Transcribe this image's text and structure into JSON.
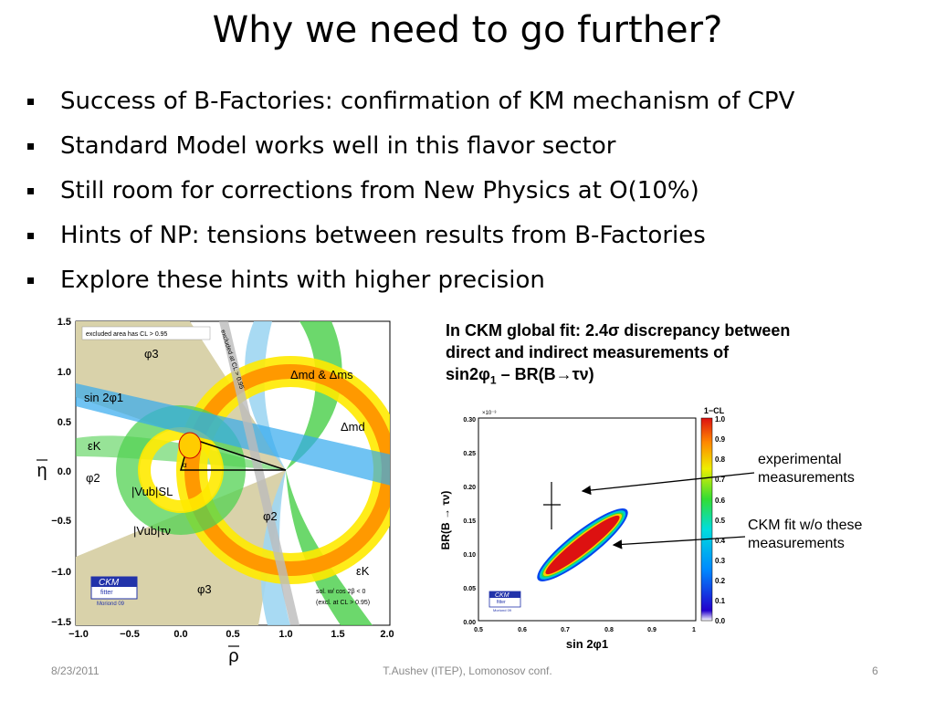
{
  "slide": {
    "title": "Why we need to go further?",
    "bullets": [
      "Success of B-Factories: confirmation of KM mechanism of CPV",
      "Standard Model works well in this flavor sector",
      "Still room for corrections from New Physics  at O(10%)",
      "Hints of NP: tensions between results from B-Factories",
      "Explore these hints with higher precision"
    ],
    "note": {
      "line1": "In CKM global fit: 2.4σ discrepancy between",
      "line2": "direct and indirect measurements of",
      "line3_a": "sin2φ",
      "line3_sub": "1",
      "line3_b": " – BR(B→τν)"
    },
    "callouts": {
      "experimental": [
        "experimental",
        "measurements"
      ],
      "ckm_fit": [
        "CKM fit w/o these",
        "measurements"
      ]
    },
    "footer": {
      "date": "8/23/2011",
      "center": "T.Aushev (ITEP), Lomonosov conf.",
      "page": "6"
    }
  },
  "left_plot": {
    "xlabel": "ρ",
    "ylabel": "η",
    "xticks": [
      "−1.0",
      "−0.5",
      "0.0",
      "0.5",
      "1.0",
      "1.5",
      "2.0"
    ],
    "yticks": [
      "1.5",
      "1.0",
      "0.5",
      "0.0",
      "−0.5",
      "−1.0",
      "−1.5"
    ],
    "legend_box": "excluded area has CL > 0.95",
    "labels": {
      "phi3_top": "φ3",
      "sin2phi1": "sin 2φ1",
      "dmd_dms": "Δmd & Δms",
      "dmd": "Δmd",
      "eps_k_left": "εK",
      "phi2_left": "φ2",
      "vub_sl": "|Vub|SL",
      "vub_taunu": "|Vub|τν",
      "phi2_right": "φ2",
      "eps_k_right": "εK",
      "phi3_bottom": "φ3",
      "alpha": "α",
      "excluded_at_cl": "excluded at CL > 0.95",
      "sol_line1": "sol. w/ cos 2β < 0",
      "sol_line2": "(excl. at CL > 0.95)"
    },
    "logo": {
      "ckm": "CKM",
      "fitter": "fitter",
      "sub": "Moriond 09"
    }
  },
  "right_plot": {
    "ylabel": "BR(B → τν)",
    "xlabel": "sin 2φ1",
    "multiplier": "×10⁻³",
    "colorbar_title": "1−CL",
    "xticks": [
      "0.5",
      "0.6",
      "0.7",
      "0.8",
      "0.9",
      "1"
    ],
    "yticks": [
      "0.30",
      "0.25",
      "0.20",
      "0.15",
      "0.10",
      "0.05",
      "0.00"
    ],
    "cticks": [
      "1.0",
      "0.9",
      "0.8",
      "0.7",
      "0.6",
      "0.5",
      "0.4",
      "0.3",
      "0.2",
      "0.1",
      "0.0"
    ],
    "logo": {
      "ckm": "CKM",
      "fitter": "fitter",
      "sub": "Moriond 09"
    },
    "measurement": {
      "sin2phi1": 0.67,
      "sin2phi1_err": 0.02,
      "br": 0.000173,
      "br_err": 3.5e-05
    }
  },
  "colors": {
    "green": "#52d152",
    "yellow": "#ffea00",
    "orange": "#ff9900",
    "blue": "#33aaee",
    "tan": "#d9d2aa",
    "heat_red": "#dd1111"
  }
}
